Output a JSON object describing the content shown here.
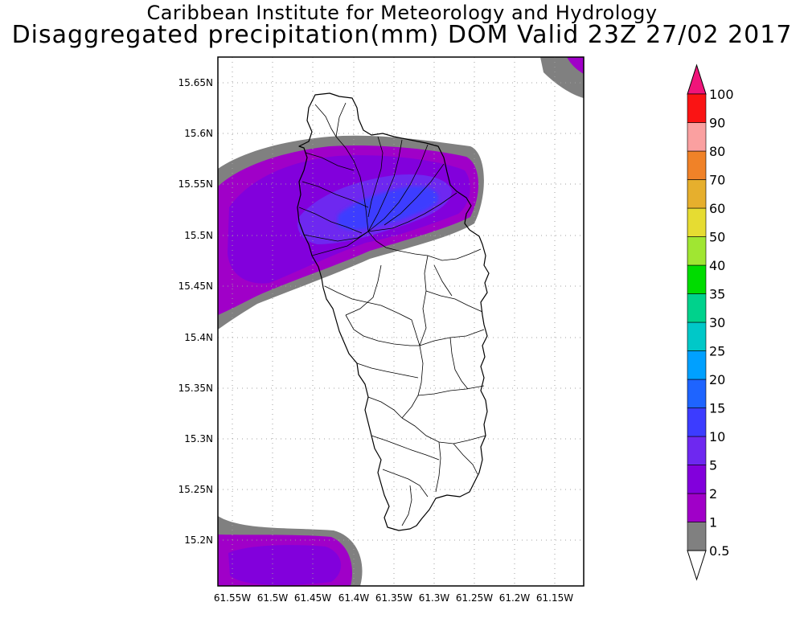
{
  "header": {
    "institution": "Caribbean Institute for Meteorology and Hydrology",
    "product": "Disaggregated precipitation(mm) DOM Valid 23Z 27/02 2017"
  },
  "map": {
    "region": "Dominica",
    "lat_range": [
      15.155,
      15.68
    ],
    "lon_range": [
      -61.575,
      -61.135
    ],
    "lat_ticks": [
      "15.2N",
      "15.25N",
      "15.3N",
      "15.35N",
      "15.4N",
      "15.45N",
      "15.5N",
      "15.55N",
      "15.6N",
      "15.65N"
    ],
    "lon_ticks": [
      "61.55W",
      "61.5W",
      "61.45W",
      "61.4W",
      "61.35W",
      "61.3W",
      "61.25W",
      "61.2W",
      "61.15W"
    ],
    "grid": true,
    "colors": {
      "land_fill": "#ffffff",
      "coastline": "#000000",
      "gridline": "#a0a0a0"
    }
  },
  "colorbar": {
    "labels": [
      "0.5",
      "1",
      "2",
      "5",
      "10",
      "15",
      "20",
      "25",
      "30",
      "35",
      "40",
      "50",
      "60",
      "70",
      "80",
      "90",
      "100"
    ],
    "colors": [
      "#808080",
      "#a000c8",
      "#8200dc",
      "#6e28f0",
      "#3c3cff",
      "#1e64ff",
      "#00a0ff",
      "#00c8c8",
      "#00d28c",
      "#00dc00",
      "#a0e632",
      "#e6dc32",
      "#e6af2d",
      "#f08228",
      "#faa0a0",
      "#fa1414",
      "#f04646"
    ],
    "under_color": "#ffffff",
    "over_color": "#f0147a"
  }
}
